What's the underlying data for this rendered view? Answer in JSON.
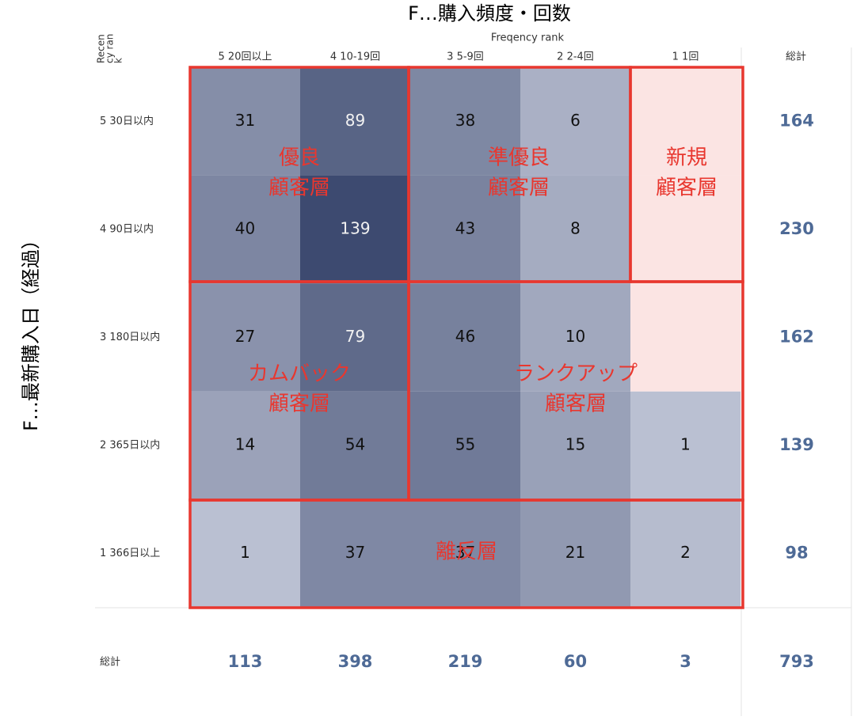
{
  "chart_data": {
    "type": "heatmap",
    "title": "F…購入頻度・回数",
    "y_title": "F…最新購入日（経過）",
    "x_label": "Freqency rank",
    "y_label": [
      "Recen",
      "cy ran",
      "k"
    ],
    "x_categories": [
      "5  20回以上",
      "4  10-19回",
      "3  5-9回",
      "2  2-4回",
      "1  1回"
    ],
    "y_categories": [
      "5  30日以内",
      "4  90日以内",
      "3  180日以内",
      "2  365日以内",
      "1  366日以上"
    ],
    "values": [
      [
        31,
        89,
        38,
        6,
        null
      ],
      [
        40,
        139,
        43,
        8,
        null
      ],
      [
        27,
        79,
        46,
        10,
        null
      ],
      [
        14,
        54,
        55,
        15,
        1
      ],
      [
        1,
        37,
        37,
        21,
        2
      ]
    ],
    "total_label": "総計",
    "row_totals": [
      164,
      230,
      162,
      139,
      98
    ],
    "column_totals": [
      113,
      398,
      219,
      60,
      3
    ],
    "grand_total": 793,
    "segments": [
      [
        "優良",
        "顧客層"
      ],
      [
        "準優良",
        "顧客層"
      ],
      [
        "新規",
        "顧客層"
      ],
      [
        "カムバック",
        "顧客層"
      ],
      [
        "ランクアップ",
        "顧客層"
      ],
      [
        "離反層"
      ]
    ],
    "low_color": "#c6cbdb",
    "high_color": "#3d4a70",
    "highlight_color": "#fbe4e3",
    "frame_color": "#e8372f"
  }
}
